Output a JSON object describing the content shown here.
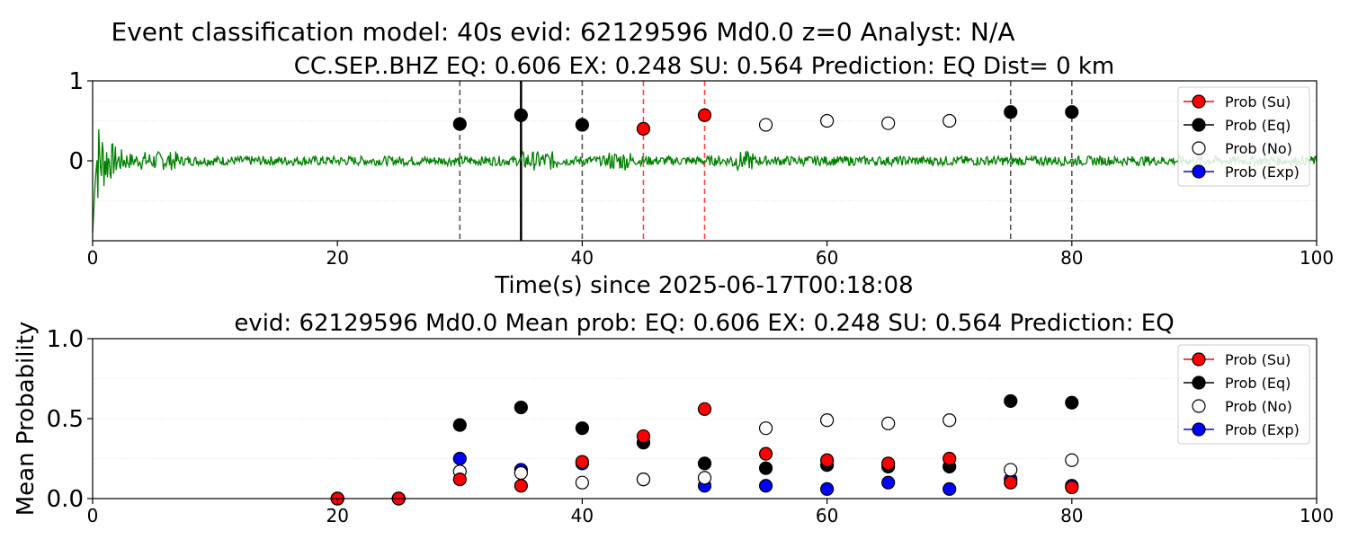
{
  "figure": {
    "suptitle": "Event classification model: 40s evid: 62129596 Md0.0 z=0 Analyst: N/A"
  },
  "chart_data": [
    {
      "type": "line",
      "title": "CC.SEP..BHZ   EQ: 0.606  EX: 0.248  SU: 0.564   Prediction: EQ    Dist= 0 km",
      "xlabel": "Time(s) since 2025-06-17T00:18:08",
      "ylabel": "",
      "xlim": [
        0,
        100
      ],
      "ylim": [
        -1,
        1
      ],
      "x_ticks": [
        "0",
        "20",
        "40",
        "60",
        "80",
        "100"
      ],
      "y_ticks": [
        "1",
        "0"
      ],
      "grid": "horizontal dotted",
      "legend_position": "upper right",
      "waveform_color": "#008000",
      "window_markers": [
        {
          "x": 30,
          "style": "dashed",
          "color": "#555555"
        },
        {
          "x": 35,
          "style": "solid",
          "color": "#000000"
        },
        {
          "x": 40,
          "style": "dashed",
          "color": "#555555"
        },
        {
          "x": 45,
          "style": "dashed",
          "color": "#ff4444"
        },
        {
          "x": 50,
          "style": "dashed",
          "color": "#ff4444"
        },
        {
          "x": 75,
          "style": "dashed",
          "color": "#555555"
        },
        {
          "x": 80,
          "style": "dashed",
          "color": "#555555"
        }
      ],
      "points": [
        {
          "x": 30,
          "y": 0.46,
          "class": "Eq"
        },
        {
          "x": 35,
          "y": 0.57,
          "class": "Eq"
        },
        {
          "x": 40,
          "y": 0.45,
          "class": "Eq"
        },
        {
          "x": 45,
          "y": 0.4,
          "class": "Su"
        },
        {
          "x": 50,
          "y": 0.57,
          "class": "Su"
        },
        {
          "x": 55,
          "y": 0.45,
          "class": "No"
        },
        {
          "x": 60,
          "y": 0.5,
          "class": "No"
        },
        {
          "x": 65,
          "y": 0.47,
          "class": "No"
        },
        {
          "x": 70,
          "y": 0.5,
          "class": "No"
        },
        {
          "x": 75,
          "y": 0.61,
          "class": "Eq"
        },
        {
          "x": 80,
          "y": 0.61,
          "class": "Eq"
        }
      ],
      "legend": [
        "Prob (Su)",
        "Prob (Eq)",
        "Prob (No)",
        "Prob (Exp)"
      ]
    },
    {
      "type": "scatter",
      "title": "evid: 62129596  Md0.0   Mean prob:   EQ: 0.606  EX: 0.248  SU: 0.564   Prediction: EQ",
      "xlabel": "",
      "ylabel": "Mean Probability",
      "xlim": [
        0,
        100
      ],
      "ylim": [
        0,
        1.0
      ],
      "x_ticks": [
        "0",
        "20",
        "40",
        "60",
        "80",
        "100"
      ],
      "y_ticks": [
        "0.0",
        "0.5",
        "1.0"
      ],
      "grid": "horizontal dotted",
      "legend_position": "upper right",
      "x": [
        20,
        25,
        30,
        35,
        40,
        45,
        50,
        55,
        60,
        65,
        70,
        75,
        80
      ],
      "series": [
        {
          "name": "Prob (Exp)",
          "color": "#0000ff",
          "fill": "#0000ff",
          "values": [
            0.0,
            0.0,
            0.25,
            0.18,
            0.22,
            0.12,
            0.08,
            0.08,
            0.06,
            0.1,
            0.06,
            0.12,
            0.08
          ]
        },
        {
          "name": "Prob (No)",
          "color": "#000000",
          "fill": "#ffffff",
          "values": [
            0.0,
            0.0,
            0.17,
            0.16,
            0.1,
            0.12,
            0.13,
            0.44,
            0.49,
            0.47,
            0.49,
            0.18,
            0.24
          ]
        },
        {
          "name": "Prob (Eq)",
          "color": "#000000",
          "fill": "#000000",
          "values": [
            0.0,
            0.0,
            0.46,
            0.57,
            0.44,
            0.35,
            0.22,
            0.19,
            0.21,
            0.2,
            0.2,
            0.61,
            0.6
          ]
        },
        {
          "name": "Prob (Su)",
          "color": "#ff0000",
          "fill": "#ff0000",
          "values": [
            0.0,
            0.0,
            0.12,
            0.08,
            0.23,
            0.39,
            0.56,
            0.28,
            0.24,
            0.22,
            0.25,
            0.1,
            0.07
          ]
        }
      ],
      "legend": [
        "Prob (Su)",
        "Prob (Eq)",
        "Prob (No)",
        "Prob (Exp)"
      ]
    }
  ],
  "legend_styles": {
    "Prob (Su)": {
      "marker": "#ff0000",
      "line": "#ff0000"
    },
    "Prob (Eq)": {
      "marker": "#000000",
      "line": "#000000"
    },
    "Prob (No)": {
      "marker": "#ffffff",
      "line": "none"
    },
    "Prob (Exp)": {
      "marker": "#0000ff",
      "line": "#0000ff"
    }
  }
}
